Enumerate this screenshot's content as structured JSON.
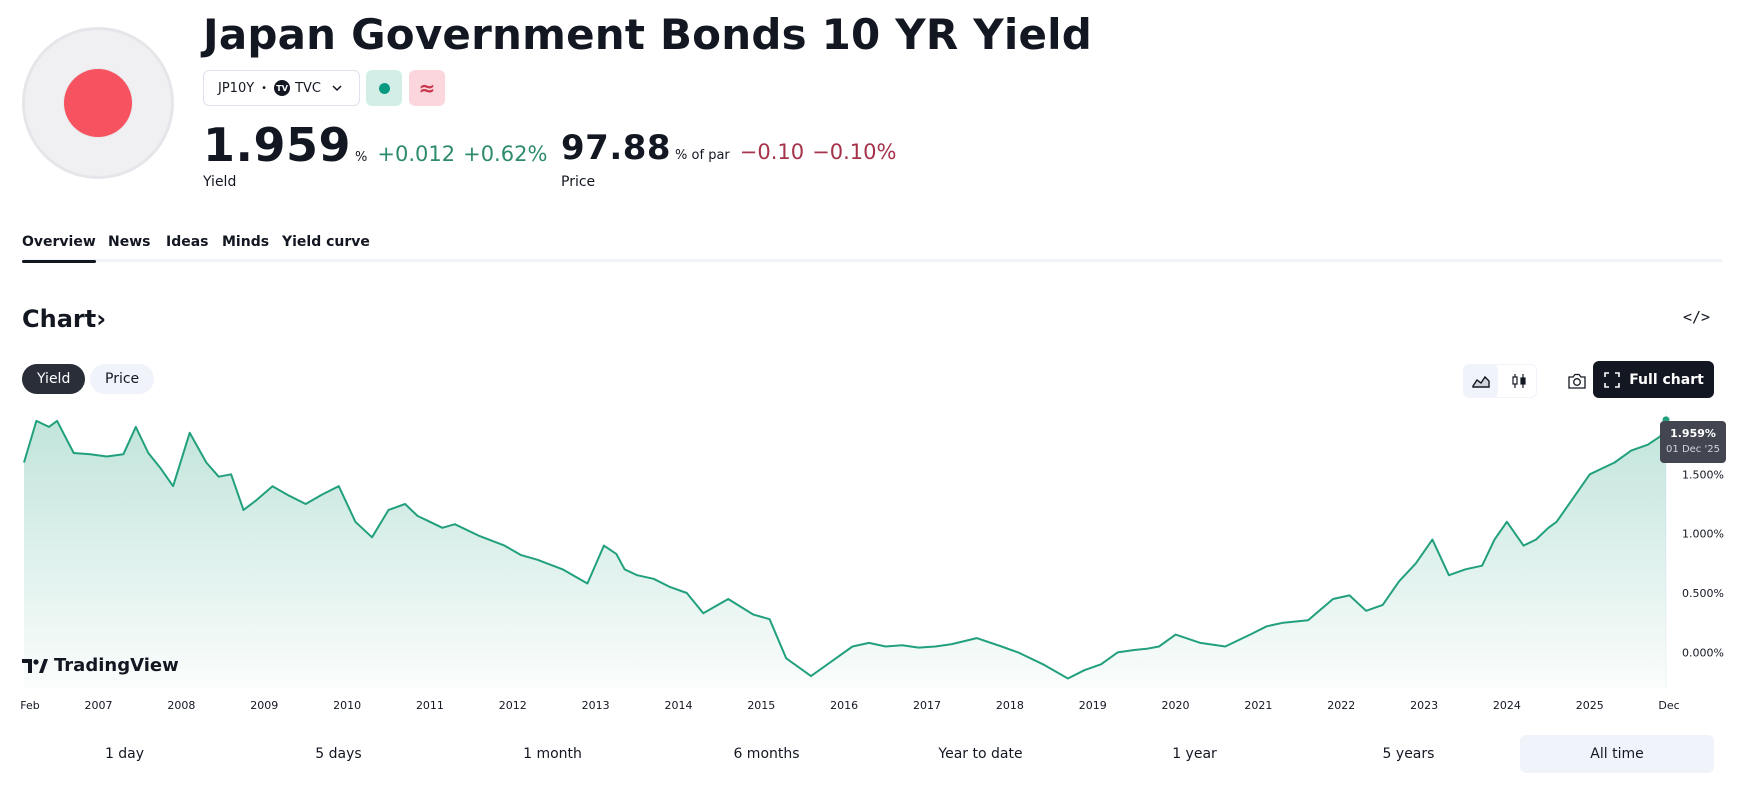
{
  "header": {
    "title": "Japan Government Bonds 10 YR Yield",
    "flag_icon": "japan-flag-icon",
    "symbol": "JP10Y",
    "separator": "•",
    "exchange_badge": "TV",
    "exchange": "TVC",
    "colors": {
      "flag_red": "#f7525f",
      "positive": "#2e8b6e",
      "negative": "#a5334a",
      "market_open": "#089981"
    },
    "approx_symbol": "≈"
  },
  "yield_quote": {
    "value": "1.959",
    "unit": "%",
    "change": "+0.012",
    "change_pct": "+0.62%",
    "label": "Yield"
  },
  "price_quote": {
    "value": "97.88",
    "unit": "% of par",
    "change": "−0.10",
    "change_pct": "−0.10%",
    "label": "Price"
  },
  "tabs": [
    {
      "label": "Overview",
      "active": true
    },
    {
      "label": "News"
    },
    {
      "label": "Ideas"
    },
    {
      "label": "Minds"
    },
    {
      "label": "Yield curve"
    }
  ],
  "chart_section": {
    "title": "Chart",
    "chevron": "›",
    "embed_label": "</>",
    "toggle": [
      {
        "label": "Yield",
        "active": true
      },
      {
        "label": "Price"
      }
    ],
    "full_chart_label": "Full chart",
    "branding": "TradingView"
  },
  "tooltip": {
    "value": "1.959%",
    "date": "01 Dec '25"
  },
  "ranges": [
    {
      "label": "1 day"
    },
    {
      "label": "5 days"
    },
    {
      "label": "1 month"
    },
    {
      "label": "6 months"
    },
    {
      "label": "Year to date"
    },
    {
      "label": "1 year"
    },
    {
      "label": "5 years"
    },
    {
      "label": "All time",
      "active": true
    }
  ],
  "chart_data": {
    "type": "area",
    "x_tick_labels": [
      "Feb",
      "2007",
      "2008",
      "2009",
      "2010",
      "2011",
      "2012",
      "2013",
      "2014",
      "2015",
      "2016",
      "2017",
      "2018",
      "2019",
      "2020",
      "2021",
      "2022",
      "2023",
      "2024",
      "2025",
      "Dec"
    ],
    "y_tick_labels": [
      "1.500%",
      "1.000%",
      "0.500%",
      "0.000%"
    ],
    "y_ticks": [
      1.5,
      1.0,
      0.5,
      0.0
    ],
    "ylim": [
      -0.3,
      2.0
    ],
    "xlim": [
      2006.1,
      2025.92
    ],
    "line_color": "#22a07e",
    "series": [
      {
        "x": [
          2006.1,
          2006.25,
          2006.4,
          2006.5,
          2006.7,
          2006.9,
          2007.1,
          2007.3,
          2007.45,
          2007.6,
          2007.75,
          2007.9,
          2008.1,
          2008.3,
          2008.45,
          2008.6,
          2008.75,
          2008.9,
          2009.1,
          2009.3,
          2009.5,
          2009.7,
          2009.9,
          2010.1,
          2010.3,
          2010.5,
          2010.7,
          2010.85,
          2011.0,
          2011.15,
          2011.3,
          2011.6,
          2011.9,
          2012.1,
          2012.3,
          2012.6,
          2012.9,
          2013.1,
          2013.25,
          2013.35,
          2013.5,
          2013.7,
          2013.9,
          2014.1,
          2014.3,
          2014.6,
          2014.9,
          2015.1,
          2015.3,
          2015.6,
          2015.9,
          2016.1,
          2016.3,
          2016.5,
          2016.7,
          2016.9,
          2017.1,
          2017.3,
          2017.6,
          2017.9,
          2018.1,
          2018.4,
          2018.7,
          2018.9,
          2019.1,
          2019.3,
          2019.5,
          2019.65,
          2019.8,
          2020.0,
          2020.3,
          2020.6,
          2020.9,
          2021.1,
          2021.3,
          2021.6,
          2021.9,
          2022.1,
          2022.3,
          2022.5,
          2022.7,
          2022.9,
          2023.1,
          2023.3,
          2023.5,
          2023.7,
          2023.85,
          2024.0,
          2024.2,
          2024.35,
          2024.5,
          2024.6,
          2024.8,
          2025.0,
          2025.15,
          2025.3,
          2025.5,
          2025.7,
          2025.85,
          2025.92
        ],
        "y": [
          1.6,
          1.95,
          1.9,
          1.95,
          1.68,
          1.67,
          1.65,
          1.67,
          1.9,
          1.68,
          1.55,
          1.4,
          1.85,
          1.6,
          1.48,
          1.5,
          1.2,
          1.28,
          1.4,
          1.32,
          1.25,
          1.33,
          1.4,
          1.1,
          0.97,
          1.2,
          1.25,
          1.15,
          1.1,
          1.05,
          1.08,
          0.98,
          0.9,
          0.82,
          0.78,
          0.7,
          0.58,
          0.9,
          0.83,
          0.7,
          0.65,
          0.62,
          0.55,
          0.5,
          0.33,
          0.45,
          0.32,
          0.28,
          -0.05,
          -0.2,
          -0.05,
          0.05,
          0.08,
          0.05,
          0.06,
          0.04,
          0.05,
          0.07,
          0.12,
          0.05,
          0.0,
          -0.1,
          -0.22,
          -0.15,
          -0.1,
          0.0,
          0.02,
          0.03,
          0.05,
          0.15,
          0.08,
          0.05,
          0.15,
          0.22,
          0.25,
          0.27,
          0.45,
          0.48,
          0.35,
          0.4,
          0.6,
          0.75,
          0.95,
          0.65,
          0.7,
          0.73,
          0.95,
          1.1,
          0.9,
          0.95,
          1.05,
          1.1,
          1.3,
          1.5,
          1.55,
          1.6,
          1.7,
          1.75,
          1.82,
          1.959
        ]
      }
    ],
    "legend": "none",
    "grid": false
  }
}
